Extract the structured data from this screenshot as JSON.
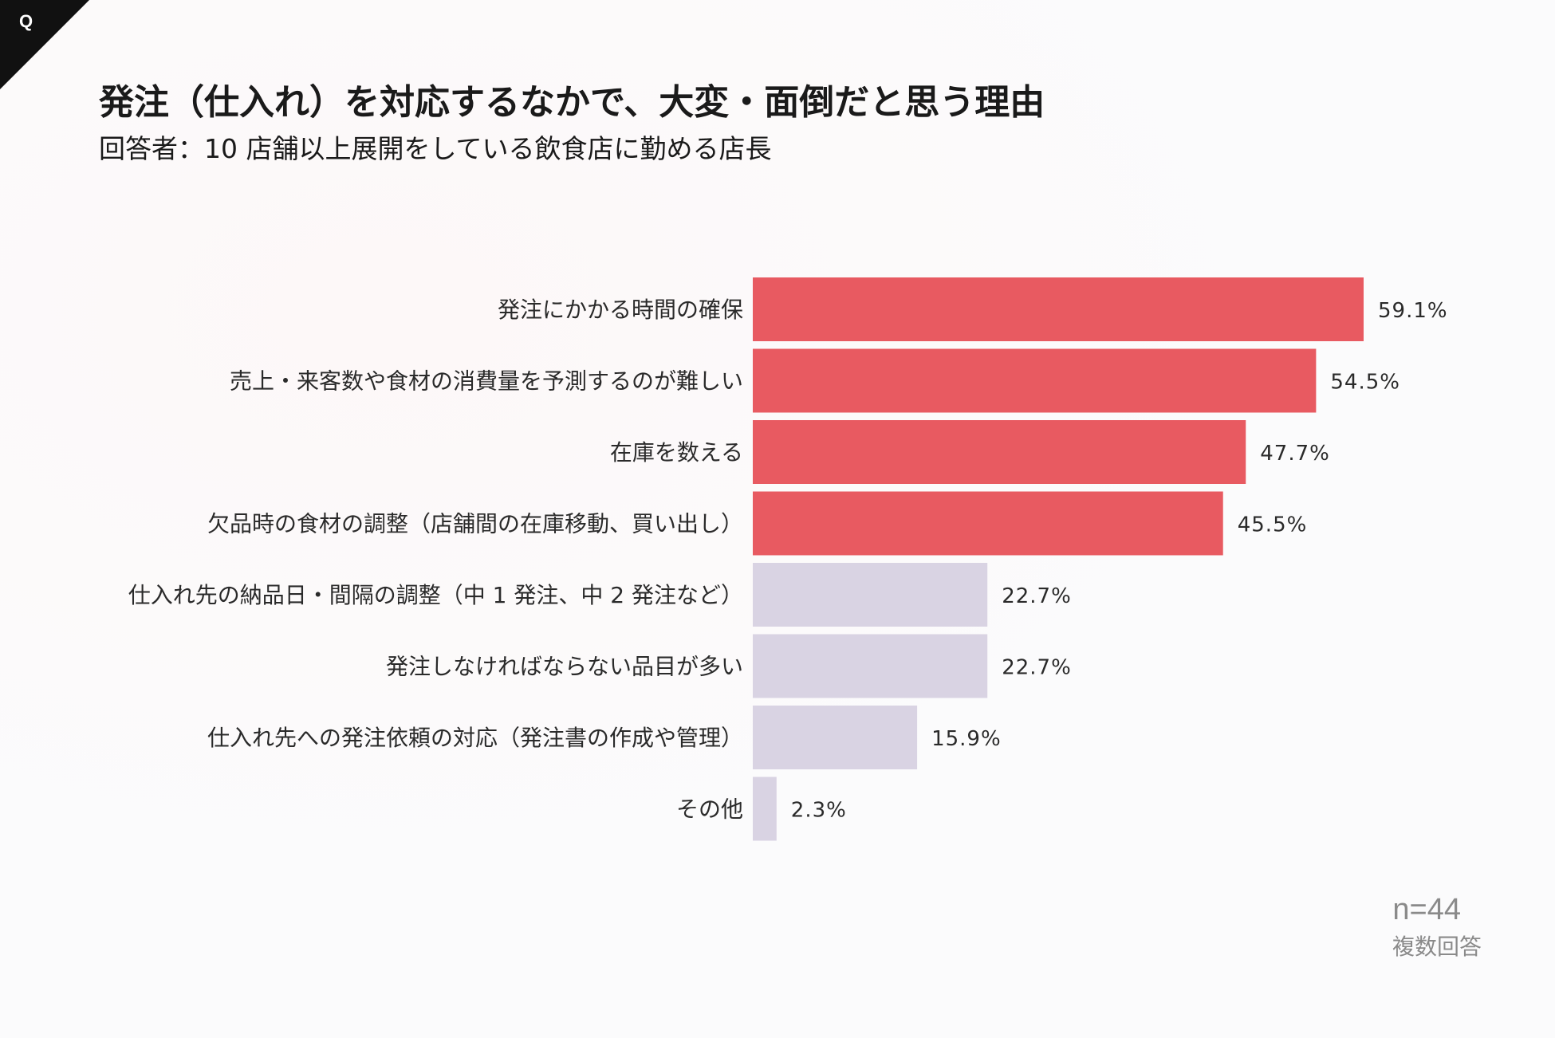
{
  "corner_label": "Q",
  "header": {
    "title": "発注（仕入れ）を対応するなかで、大変・面倒だと思う理由",
    "subtitle": "回答者：10 店舗以上展開をしている飲食店に勤める店長"
  },
  "footer": {
    "n": "n=44",
    "note": "複数回答"
  },
  "colors": {
    "highlight": "#e85a61",
    "muted": "#d9d3e3"
  },
  "chart_data": {
    "type": "bar",
    "orientation": "horizontal",
    "title": "発注（仕入れ）を対応するなかで、大変・面倒だと思う理由",
    "xlabel": "",
    "ylabel": "",
    "unit": "%",
    "xlim": [
      0,
      59.1
    ],
    "categories": [
      "発注にかかる時間の確保",
      "売上・来客数や食材の消費量を予測するのが難しい",
      "在庫を数える",
      "欠品時の食材の調整（店舗間の在庫移動、買い出し）",
      "仕入れ先の納品日・間隔の調整（中 1 発注、中 2 発注など）",
      "発注しなければならない品目が多い",
      "仕入れ先への発注依頼の対応（発注書の作成や管理）",
      "その他"
    ],
    "values": [
      59.1,
      54.5,
      47.7,
      45.5,
      22.7,
      22.7,
      15.9,
      2.3
    ],
    "value_labels": [
      "59.1%",
      "54.5%",
      "47.7%",
      "45.5%",
      "22.7%",
      "22.7%",
      "15.9%",
      "2.3%"
    ],
    "highlighted": [
      true,
      true,
      true,
      true,
      false,
      false,
      false,
      false
    ]
  }
}
